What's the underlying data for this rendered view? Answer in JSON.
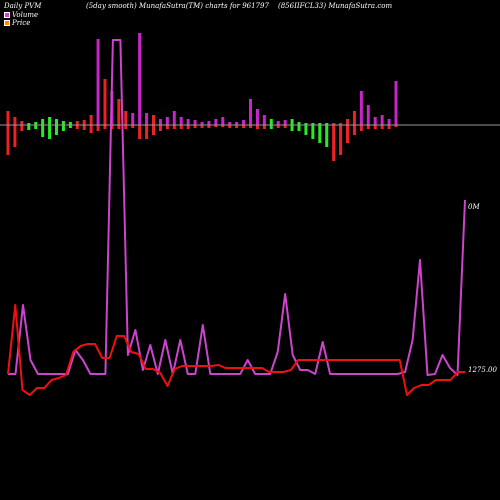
{
  "header": {
    "left": "Daily PVM",
    "middle": "(5day smooth) MunafaSutra(TM) charts for 961797",
    "right": "(856IIFCL33) MunafaSutra.com"
  },
  "legend": {
    "volume_label": "Volume",
    "price_label": "Price",
    "volume_color": "#cc44cc",
    "price_color": "#ff8800"
  },
  "axis": {
    "volume_label": "0M",
    "price_label": "1275.00"
  },
  "colors": {
    "pvm_up": "#ee2222",
    "pvm_down": "#22ee22",
    "pvm_mixed": "#cc22cc",
    "volume_line": "#cc44cc",
    "price_line": "#ee1111",
    "baseline": "#999999"
  },
  "chart_data": {
    "type": "bar",
    "pvm_bars": [
      {
        "up": 14,
        "down": 30,
        "color": "red"
      },
      {
        "up": 8,
        "down": 22,
        "color": "red"
      },
      {
        "up": 4,
        "down": 6,
        "color": "red"
      },
      {
        "up": 2,
        "down": 5,
        "color": "green"
      },
      {
        "up": 3,
        "down": 4,
        "color": "green"
      },
      {
        "up": 6,
        "down": 12,
        "color": "green"
      },
      {
        "up": 8,
        "down": 14,
        "color": "green"
      },
      {
        "up": 6,
        "down": 10,
        "color": "green"
      },
      {
        "up": 4,
        "down": 6,
        "color": "green"
      },
      {
        "up": 3,
        "down": 3,
        "color": "green"
      },
      {
        "up": 4,
        "down": 4,
        "color": "red"
      },
      {
        "up": 5,
        "down": 5,
        "color": "red"
      },
      {
        "up": 10,
        "down": 8,
        "color": "red"
      },
      {
        "up": 86,
        "down": 6,
        "color": "mixed"
      },
      {
        "up": 46,
        "down": 4,
        "color": "red"
      },
      {
        "up": 34,
        "down": 4,
        "color": "mixed"
      },
      {
        "up": 26,
        "down": 4,
        "color": "red"
      },
      {
        "up": 14,
        "down": 4,
        "color": "red"
      },
      {
        "up": 12,
        "down": 3,
        "color": "mixed"
      },
      {
        "up": 92,
        "down": 14,
        "color": "mixed"
      },
      {
        "up": 12,
        "down": 14,
        "color": "mixed"
      },
      {
        "up": 10,
        "down": 10,
        "color": "red"
      },
      {
        "up": 6,
        "down": 6,
        "color": "mixed"
      },
      {
        "up": 8,
        "down": 4,
        "color": "mixed"
      },
      {
        "up": 14,
        "down": 4,
        "color": "mixed"
      },
      {
        "up": 8,
        "down": 4,
        "color": "mixed"
      },
      {
        "up": 6,
        "down": 4,
        "color": "mixed"
      },
      {
        "up": 5,
        "down": 3,
        "color": "mixed"
      },
      {
        "up": 3,
        "down": 3,
        "color": "mixed"
      },
      {
        "up": 4,
        "down": 3,
        "color": "mixed"
      },
      {
        "up": 6,
        "down": 2,
        "color": "mixed"
      },
      {
        "up": 8,
        "down": 2,
        "color": "mixed"
      },
      {
        "up": 3,
        "down": 3,
        "color": "mixed"
      },
      {
        "up": 3,
        "down": 3,
        "color": "mixed"
      },
      {
        "up": 5,
        "down": 3,
        "color": "mixed"
      },
      {
        "up": 26,
        "down": 3,
        "color": "mixed"
      },
      {
        "up": 16,
        "down": 4,
        "color": "mixed"
      },
      {
        "up": 10,
        "down": 4,
        "color": "mixed"
      },
      {
        "up": 6,
        "down": 4,
        "color": "green"
      },
      {
        "up": 4,
        "down": 3,
        "color": "mixed"
      },
      {
        "up": 5,
        "down": 3,
        "color": "mixed"
      },
      {
        "up": 6,
        "down": 6,
        "color": "green"
      },
      {
        "up": 3,
        "down": 6,
        "color": "green"
      },
      {
        "up": 2,
        "down": 10,
        "color": "green"
      },
      {
        "up": 2,
        "down": 14,
        "color": "green"
      },
      {
        "up": 2,
        "down": 18,
        "color": "green"
      },
      {
        "up": 2,
        "down": 22,
        "color": "green"
      },
      {
        "up": 2,
        "down": 36,
        "color": "red"
      },
      {
        "up": 2,
        "down": 30,
        "color": "red"
      },
      {
        "up": 6,
        "down": 18,
        "color": "red"
      },
      {
        "up": 14,
        "down": 10,
        "color": "red"
      },
      {
        "up": 34,
        "down": 6,
        "color": "mixed"
      },
      {
        "up": 20,
        "down": 4,
        "color": "mixed"
      },
      {
        "up": 8,
        "down": 4,
        "color": "mixed"
      },
      {
        "up": 10,
        "down": 4,
        "color": "mixed"
      },
      {
        "up": 6,
        "down": 4,
        "color": "mixed"
      },
      {
        "up": 44,
        "down": 2,
        "color": "mixed"
      }
    ],
    "volume_series": [
      374,
      374,
      305,
      360,
      374,
      374,
      374,
      374,
      374,
      350,
      360,
      374,
      374,
      374,
      40,
      40,
      355,
      330,
      370,
      345,
      374,
      340,
      374,
      340,
      374,
      374,
      325,
      374,
      374,
      374,
      374,
      374,
      360,
      374,
      374,
      374,
      352,
      294,
      355,
      370,
      370,
      374,
      342,
      374,
      374,
      374,
      374,
      374,
      374,
      374,
      374,
      374,
      374,
      372,
      340,
      260,
      375,
      374,
      355,
      368,
      375,
      200
    ],
    "price_series": [
      374,
      305,
      390,
      395,
      388,
      388,
      380,
      378,
      375,
      352,
      346,
      344,
      344,
      358,
      358,
      336,
      336,
      352,
      354,
      369,
      369,
      373,
      386,
      369,
      366,
      366,
      366,
      366,
      366,
      365,
      368,
      368,
      368,
      368,
      368,
      368,
      372,
      372,
      372,
      370,
      360,
      360,
      360,
      360,
      360,
      360,
      360,
      360,
      360,
      360,
      360,
      360,
      360,
      360,
      360,
      395,
      388,
      385,
      385,
      380,
      380,
      380,
      372,
      372
    ]
  }
}
